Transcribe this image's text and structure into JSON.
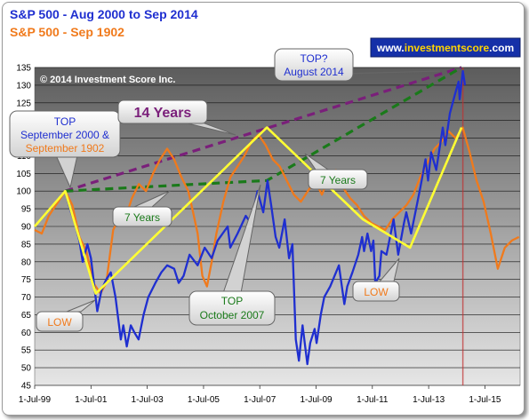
{
  "titles": {
    "line1": "S&P 500  - Aug 2000 to Sep 2014",
    "line2": "S&P 500  - Sep 1902"
  },
  "brand": {
    "prefix": "www.",
    "name": "investmentscore",
    "suffix": ".com"
  },
  "copyright": "© 2014 Investment Score Inc.",
  "colors": {
    "blue_series": "#1f2fd0",
    "orange_series": "#f07a1c",
    "pattern_line": "#ffff33",
    "purple_dash": "#7a1f7a",
    "green_dash": "#1a7a1a",
    "plot_top": "#5c5c5c",
    "plot_bottom": "#e6e6e6"
  },
  "callouts": {
    "top_label": "TOP",
    "top_detail_1": "September 2000 &",
    "top_detail_2": "September 1902",
    "fourteen": "14 Years",
    "seven_left": "7 Years",
    "seven_right": "7 Years",
    "low_left": "LOW",
    "low_right": "LOW",
    "top2007_1": "TOP",
    "top2007_2": "October 2007",
    "top2014_1": "TOP?",
    "top2014_2": "August 2014"
  },
  "chart_data": {
    "type": "line",
    "title": "S&P 500  - Aug 2000 to Sep 2014",
    "subtitle": "S&P 500  - Sep 1902",
    "xlabel": "",
    "ylabel": "",
    "ylim": [
      45,
      135
    ],
    "yticks": [
      45,
      50,
      55,
      60,
      65,
      70,
      75,
      80,
      85,
      90,
      95,
      100,
      105,
      110,
      115,
      120,
      125,
      130,
      135
    ],
    "xlim": [
      "1999-07-01",
      "2016-09-30"
    ],
    "xticks": [
      {
        "date": "1999-07-01",
        "label": "1-Jul-99"
      },
      {
        "date": "2001-07-01",
        "label": "1-Jul-01"
      },
      {
        "date": "2003-07-01",
        "label": "1-Jul-03"
      },
      {
        "date": "2005-07-01",
        "label": "1-Jul-05"
      },
      {
        "date": "2007-07-01",
        "label": "1-Jul-07"
      },
      {
        "date": "2009-07-01",
        "label": "1-Jul-09"
      },
      {
        "date": "2011-07-01",
        "label": "1-Jul-11"
      },
      {
        "date": "2013-07-01",
        "label": "1-Jul-13"
      },
      {
        "date": "2015-07-01",
        "label": "1-Jul-15"
      }
    ],
    "grid": true,
    "series": [
      {
        "name": "S&P 500  - Aug 2000 to Sep 2014",
        "color": "#1f2fd0",
        "points": [
          [
            "2000-08-01",
            100
          ],
          [
            "2000-10-01",
            95
          ],
          [
            "2000-12-01",
            91
          ],
          [
            "2001-02-01",
            86
          ],
          [
            "2001-03-15",
            80
          ],
          [
            "2001-05-15",
            85
          ],
          [
            "2001-07-01",
            81
          ],
          [
            "2001-09-21",
            66
          ],
          [
            "2001-11-15",
            72
          ],
          [
            "2002-01-15",
            75
          ],
          [
            "2002-03-15",
            77
          ],
          [
            "2002-05-15",
            70
          ],
          [
            "2002-07-23",
            58
          ],
          [
            "2002-08-25",
            62
          ],
          [
            "2002-10-09",
            56
          ],
          [
            "2002-11-30",
            62
          ],
          [
            "2003-01-15",
            60
          ],
          [
            "2003-03-11",
            58
          ],
          [
            "2003-05-15",
            65
          ],
          [
            "2003-07-15",
            70
          ],
          [
            "2003-10-15",
            74
          ],
          [
            "2003-12-31",
            77
          ],
          [
            "2004-03-15",
            79
          ],
          [
            "2004-06-15",
            78
          ],
          [
            "2004-08-13",
            74
          ],
          [
            "2004-10-15",
            76
          ],
          [
            "2004-12-31",
            82
          ],
          [
            "2005-04-15",
            79
          ],
          [
            "2005-07-15",
            84
          ],
          [
            "2005-10-15",
            81
          ],
          [
            "2005-12-31",
            86
          ],
          [
            "2006-05-10",
            90
          ],
          [
            "2006-06-13",
            84
          ],
          [
            "2006-09-15",
            88
          ],
          [
            "2006-12-31",
            93
          ],
          [
            "2007-03-05",
            91
          ],
          [
            "2007-06-01",
            100
          ],
          [
            "2007-08-15",
            94
          ],
          [
            "2007-10-09",
            103
          ],
          [
            "2007-11-26",
            96
          ],
          [
            "2008-01-22",
            87
          ],
          [
            "2008-03-10",
            84
          ],
          [
            "2008-05-19",
            92
          ],
          [
            "2008-07-15",
            81
          ],
          [
            "2008-08-28",
            85
          ],
          [
            "2008-10-10",
            58
          ],
          [
            "2008-11-20",
            52
          ],
          [
            "2009-01-06",
            62
          ],
          [
            "2009-03-09",
            51
          ],
          [
            "2009-04-15",
            57
          ],
          [
            "2009-06-12",
            61
          ],
          [
            "2009-07-08",
            57
          ],
          [
            "2009-08-31",
            65
          ],
          [
            "2009-10-15",
            70
          ],
          [
            "2009-12-31",
            73
          ],
          [
            "2010-04-23",
            79
          ],
          [
            "2010-07-02",
            68
          ],
          [
            "2010-08-09",
            73
          ],
          [
            "2010-10-15",
            77
          ],
          [
            "2010-12-31",
            82
          ],
          [
            "2011-02-18",
            87
          ],
          [
            "2011-03-16",
            83
          ],
          [
            "2011-04-29",
            88
          ],
          [
            "2011-06-15",
            83
          ],
          [
            "2011-07-15",
            86
          ],
          [
            "2011-08-08",
            74
          ],
          [
            "2011-09-30",
            76
          ],
          [
            "2011-10-27",
            83
          ],
          [
            "2011-12-31",
            82
          ],
          [
            "2012-04-02",
            92
          ],
          [
            "2012-06-01",
            82
          ],
          [
            "2012-08-15",
            91
          ],
          [
            "2012-09-14",
            94
          ],
          [
            "2012-11-15",
            88
          ],
          [
            "2012-12-31",
            93
          ],
          [
            "2013-03-15",
            101
          ],
          [
            "2013-05-21",
            109
          ],
          [
            "2013-06-24",
            103
          ],
          [
            "2013-08-02",
            111
          ],
          [
            "2013-10-08",
            106
          ],
          [
            "2013-12-31",
            118
          ],
          [
            "2014-02-03",
            113
          ],
          [
            "2014-04-02",
            122
          ],
          [
            "2014-06-15",
            128
          ],
          [
            "2014-07-24",
            131
          ],
          [
            "2014-08-07",
            126
          ],
          [
            "2014-09-18",
            134
          ],
          [
            "2014-10-15",
            130
          ]
        ]
      },
      {
        "name": "S&P 500  - Sep 1902",
        "color": "#f07a1c",
        "points": [
          [
            "1999-07-01",
            89
          ],
          [
            "1999-10-01",
            88
          ],
          [
            "2000-01-01",
            93
          ],
          [
            "2000-04-01",
            96
          ],
          [
            "2000-08-01",
            100
          ],
          [
            "2000-11-01",
            96
          ],
          [
            "2001-02-01",
            87
          ],
          [
            "2001-05-01",
            83
          ],
          [
            "2001-08-01",
            74
          ],
          [
            "2001-11-01",
            71
          ],
          [
            "2002-01-15",
            74
          ],
          [
            "2002-04-15",
            89
          ],
          [
            "2002-07-15",
            93
          ],
          [
            "2002-09-15",
            92
          ],
          [
            "2002-12-15",
            98
          ],
          [
            "2003-03-15",
            102
          ],
          [
            "2003-06-15",
            100
          ],
          [
            "2003-09-15",
            105
          ],
          [
            "2003-12-15",
            109
          ],
          [
            "2004-03-15",
            112
          ],
          [
            "2004-06-15",
            109
          ],
          [
            "2004-09-15",
            104
          ],
          [
            "2004-12-15",
            100
          ],
          [
            "2005-02-15",
            94
          ],
          [
            "2005-04-15",
            88
          ],
          [
            "2005-06-15",
            76
          ],
          [
            "2005-08-15",
            73
          ],
          [
            "2005-10-15",
            80
          ],
          [
            "2005-12-15",
            88
          ],
          [
            "2006-03-15",
            97
          ],
          [
            "2006-06-15",
            104
          ],
          [
            "2006-09-15",
            107
          ],
          [
            "2006-12-15",
            110
          ],
          [
            "2007-03-15",
            114
          ],
          [
            "2007-06-15",
            116
          ],
          [
            "2007-09-15",
            113
          ],
          [
            "2007-12-15",
            109
          ],
          [
            "2008-03-15",
            107
          ],
          [
            "2008-06-15",
            103
          ],
          [
            "2008-09-15",
            99
          ],
          [
            "2008-12-15",
            97
          ],
          [
            "2009-03-15",
            100
          ],
          [
            "2009-06-15",
            103
          ],
          [
            "2009-09-15",
            99
          ],
          [
            "2009-12-15",
            104
          ],
          [
            "2010-03-15",
            106
          ],
          [
            "2010-06-15",
            101
          ],
          [
            "2010-09-15",
            98
          ],
          [
            "2010-12-15",
            96
          ],
          [
            "2011-03-15",
            93
          ],
          [
            "2011-06-15",
            91
          ],
          [
            "2011-09-15",
            90
          ],
          [
            "2011-12-15",
            89
          ],
          [
            "2012-03-15",
            92
          ],
          [
            "2012-06-15",
            94
          ],
          [
            "2012-09-15",
            96
          ],
          [
            "2012-12-15",
            99
          ],
          [
            "2013-03-15",
            104
          ],
          [
            "2013-06-15",
            108
          ],
          [
            "2013-09-15",
            112
          ],
          [
            "2013-12-15",
            114
          ],
          [
            "2014-03-15",
            117
          ],
          [
            "2014-06-15",
            115
          ],
          [
            "2014-09-15",
            118
          ],
          [
            "2014-12-15",
            111
          ],
          [
            "2015-03-15",
            103
          ],
          [
            "2015-06-15",
            97
          ],
          [
            "2015-09-15",
            88
          ],
          [
            "2015-12-15",
            78
          ],
          [
            "2016-03-15",
            84
          ],
          [
            "2016-06-15",
            86
          ],
          [
            "2016-09-15",
            87
          ]
        ]
      }
    ],
    "pattern_line": {
      "color": "#ffff33",
      "points": [
        [
          "1999-07-01",
          90
        ],
        [
          "2000-08-01",
          100
        ],
        [
          "2001-09-01",
          71
        ],
        [
          "2007-10-01",
          118
        ],
        [
          "2011-03-01",
          92
        ],
        [
          "2012-11-01",
          84
        ],
        [
          "2014-09-01",
          118
        ]
      ]
    },
    "trend_lines": [
      {
        "color": "#7a1f7a",
        "from": [
          "2000-08-01",
          100
        ],
        "to": [
          "2014-09-01",
          135
        ]
      },
      {
        "color": "#1a7a1a",
        "points": [
          [
            "2000-08-01",
            100
          ],
          [
            "2007-10-01",
            103
          ],
          [
            "2014-09-01",
            135
          ]
        ]
      }
    ],
    "vertical_marker": {
      "date": "2014-09-18",
      "color": "#c03030"
    }
  }
}
